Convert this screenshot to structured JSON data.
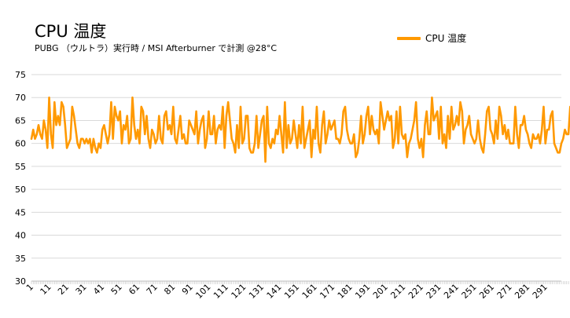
{
  "chart_data": {
    "type": "line",
    "title": "CPU 温度",
    "subtitle": "PUBG （ウルトラ）実行時 / MSI Afterburner で計測 @28°C",
    "series": [
      {
        "name": "CPU 温度",
        "color": "#ff9900",
        "values": [
          61,
          63,
          61,
          62,
          64,
          62,
          61,
          65,
          63,
          59,
          70,
          62,
          59,
          69,
          64,
          66,
          64,
          69,
          68,
          64,
          59,
          60,
          61,
          68,
          66,
          63,
          60,
          59,
          61,
          61,
          60,
          61,
          60,
          61,
          58,
          61,
          59,
          58,
          60,
          59,
          63,
          64,
          62,
          60,
          62,
          69,
          61,
          68,
          66,
          65,
          67,
          60,
          64,
          63,
          66,
          60,
          61,
          70,
          64,
          61,
          63,
          60,
          68,
          67,
          62,
          66,
          61,
          59,
          63,
          62,
          60,
          61,
          66,
          61,
          60,
          66,
          67,
          63,
          64,
          62,
          68,
          61,
          60,
          63,
          66,
          61,
          62,
          60,
          60,
          65,
          64,
          63,
          62,
          67,
          60,
          63,
          65,
          66,
          59,
          61,
          67,
          62,
          62,
          66,
          60,
          63,
          64,
          63,
          68,
          59,
          66,
          69,
          65,
          61,
          60,
          58,
          64,
          59,
          68,
          60,
          61,
          66,
          66,
          59,
          58,
          58,
          60,
          66,
          59,
          62,
          65,
          66,
          56,
          68,
          60,
          59,
          61,
          60,
          63,
          62,
          66,
          62,
          58,
          69,
          59,
          64,
          60,
          61,
          65,
          62,
          59,
          64,
          60,
          68,
          59,
          61,
          63,
          65,
          57,
          63,
          61,
          68,
          60,
          58,
          64,
          67,
          60,
          62,
          65,
          63,
          64,
          65,
          61,
          61,
          60,
          62,
          67,
          68,
          63,
          61,
          60,
          60,
          62,
          57,
          58,
          61,
          66,
          60,
          62,
          66,
          68,
          62,
          66,
          63,
          62,
          63,
          60,
          69,
          66,
          63,
          65,
          67,
          65,
          66,
          59,
          61,
          67,
          60,
          68,
          62,
          61,
          62,
          57,
          60,
          61,
          63,
          65,
          69,
          61,
          59,
          61,
          57,
          64,
          67,
          62,
          62,
          70,
          65,
          66,
          67,
          61,
          68,
          60,
          62,
          59,
          66,
          61,
          68,
          63,
          64,
          66,
          64,
          69,
          67,
          60,
          63,
          64,
          66,
          62,
          61,
          60,
          61,
          65,
          61,
          59,
          58,
          62,
          67,
          68,
          63,
          62,
          60,
          65,
          61,
          68,
          66,
          62,
          64,
          61,
          63,
          60,
          60,
          60,
          68,
          62,
          59,
          64,
          64,
          66,
          63,
          62,
          60,
          59,
          62,
          61,
          61,
          62,
          60,
          63,
          68,
          60,
          63,
          63,
          66,
          67,
          60,
          59,
          58,
          58,
          60,
          61,
          63,
          62,
          62,
          68,
          60
        ],
        "x_start": 1
      }
    ],
    "y_ticks": [
      "75",
      "70",
      "65",
      "60",
      "55",
      "50",
      "45",
      "40",
      "35",
      "30"
    ],
    "x_tick_labels": [
      "1",
      "11",
      "21",
      "31",
      "41",
      "51",
      "61",
      "71",
      "81",
      "91",
      "101",
      "111",
      "121",
      "131",
      "141",
      "151",
      "161",
      "171",
      "181",
      "191",
      "201",
      "211",
      "221",
      "231",
      "241",
      "251",
      "261",
      "271",
      "281",
      "291"
    ],
    "ylim": [
      30,
      75
    ],
    "xlim": [
      1,
      300
    ],
    "grid": true,
    "legend_position": "top-right"
  }
}
